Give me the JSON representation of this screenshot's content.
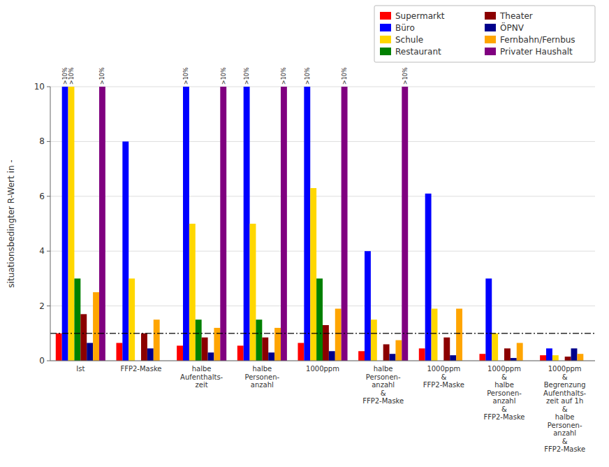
{
  "chart_data": {
    "type": "bar",
    "categories": [
      "Ist",
      "FFP2-Maske",
      "halbe\nAufenthalts-\nzeit",
      "halbe\nPersonen-\nanzahl",
      "1000ppm",
      "halbe\nPersonen-\nanzahl\n&\nFFP2-Maske",
      "1000ppm\n&\nFFP2-Maske",
      "1000ppm\n&\nhalbe\nPersonen-\nanzahl\n&\nFFP2-Maske",
      "1000ppm\n&\nBegrenzung\nAufenthalts-\nzeit auf 1h\n&\nhalbe\nPersonen-\nanzahl\n&\nFFP2-Maske"
    ],
    "series": [
      {
        "name": "Supermarkt",
        "color": "#ff0000",
        "values": [
          1.0,
          0.65,
          0.55,
          0.55,
          0.65,
          0.35,
          0.45,
          0.25,
          0.2
        ]
      },
      {
        "name": "Büro",
        "color": "#0000ff",
        "values": [
          10.0,
          8.0,
          10.0,
          10.0,
          10.0,
          4.0,
          6.1,
          3.0,
          0.45
        ],
        "value_labels": [
          ">10%",
          null,
          ">10%",
          ">10%",
          ">10%",
          null,
          null,
          null,
          null
        ]
      },
      {
        "name": "Schule",
        "color": "#ffd700",
        "values": [
          10.0,
          3.0,
          5.0,
          5.0,
          6.3,
          1.5,
          1.9,
          1.0,
          0.2
        ],
        "value_labels": [
          ">10%",
          null,
          null,
          null,
          null,
          null,
          null,
          null,
          null
        ]
      },
      {
        "name": "Restaurant",
        "color": "#008000",
        "values": [
          3.0,
          0.0,
          1.5,
          1.5,
          3.0,
          0.0,
          0.0,
          0.0,
          0.0
        ]
      },
      {
        "name": "Theater",
        "color": "#8b0000",
        "values": [
          1.7,
          1.0,
          0.85,
          0.85,
          1.3,
          0.6,
          0.85,
          0.45,
          0.15
        ]
      },
      {
        "name": "ÖPNV",
        "color": "#00008b",
        "values": [
          0.65,
          0.45,
          0.3,
          0.3,
          0.35,
          0.25,
          0.2,
          0.1,
          0.45
        ]
      },
      {
        "name": "Fernbahn/Fernbus",
        "color": "#ffa500",
        "values": [
          2.5,
          1.5,
          1.2,
          1.2,
          1.9,
          0.75,
          1.9,
          0.65,
          0.25
        ]
      },
      {
        "name": "Privater Haushalt",
        "color": "#800080",
        "values": [
          10.0,
          0.0,
          10.0,
          10.0,
          10.0,
          10.0,
          0.0,
          0.0,
          0.0
        ],
        "value_labels": [
          ">10%",
          null,
          ">10%",
          ">10%",
          ">10%",
          ">10%",
          null,
          null,
          null
        ]
      }
    ],
    "ylabel": "situationsbedingter R-Wert in -",
    "ylim": [
      0,
      10
    ],
    "yticks": [
      0,
      2,
      4,
      6,
      8,
      10
    ],
    "grid": true,
    "legend": "upper right",
    "reference_lines": [
      {
        "value": 1.0,
        "line_style": "dashdot"
      }
    ]
  }
}
